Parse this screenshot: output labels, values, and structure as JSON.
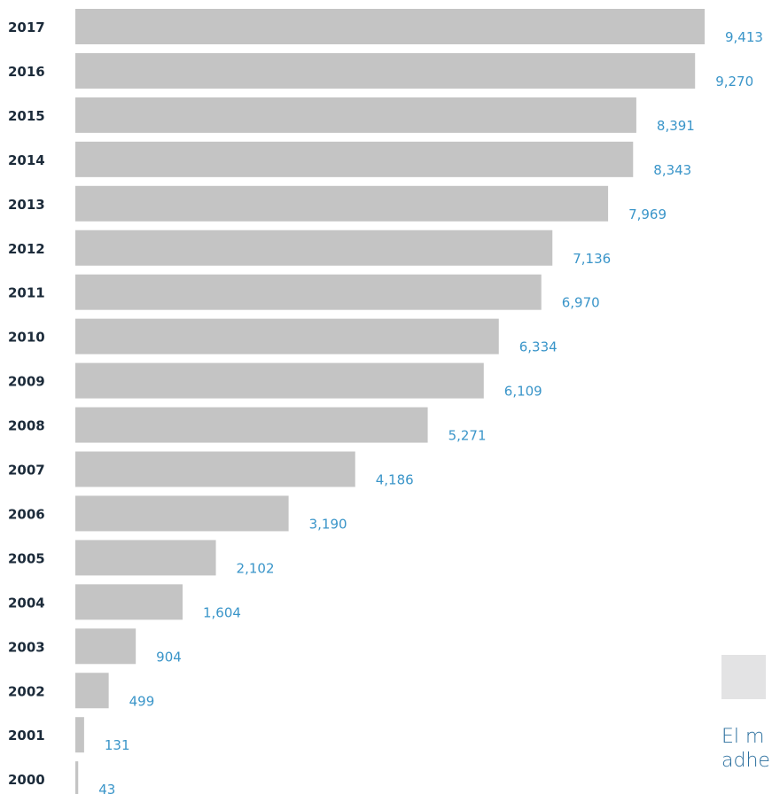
{
  "chart_data": {
    "type": "bar",
    "orientation": "horizontal",
    "categories": [
      "2017",
      "2016",
      "2015",
      "2014",
      "2013",
      "2012",
      "2011",
      "2010",
      "2009",
      "2008",
      "2007",
      "2006",
      "2005",
      "2004",
      "2003",
      "2002",
      "2001",
      "2000"
    ],
    "values": [
      9413,
      9270,
      8391,
      8343,
      7969,
      7136,
      6970,
      6334,
      6109,
      5271,
      4186,
      3190,
      2102,
      1604,
      904,
      499,
      131,
      43
    ],
    "value_labels": [
      "9,413",
      "9,270",
      "8,391",
      "8,343",
      "7,969",
      "7,136",
      "6,970",
      "6,334",
      "6,109",
      "5,271",
      "4,186",
      "3,190",
      "2,102",
      "1,604",
      "904",
      "499",
      "131",
      "43"
    ],
    "title": "",
    "xlabel": "",
    "ylabel": "",
    "xlim": [
      0,
      9413
    ],
    "grid": false,
    "colors": {
      "bar": "#c4c4c4",
      "value_label": "#3a95c9",
      "category_label": "#1c2b3a"
    }
  },
  "legend": {
    "swatch_color": "#e3e3e4",
    "text_lines": [
      "El m",
      "adhe"
    ]
  }
}
